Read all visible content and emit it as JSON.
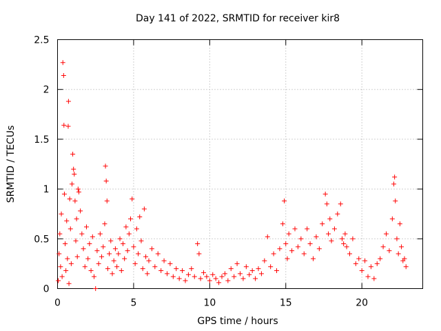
{
  "chart_data": {
    "type": "scatter",
    "title": "Day 141 of 2022, SRMTID for receiver kir8",
    "xlabel": "GPS time / hours",
    "ylabel": "SRMTID / TECUs",
    "xlim": [
      0,
      24
    ],
    "ylim": [
      0,
      2.5
    ],
    "xticks": [
      0,
      5,
      10,
      15,
      20
    ],
    "xtick_labels": [
      "0",
      "5",
      "10",
      "15",
      "20"
    ],
    "yticks": [
      0,
      0.5,
      1,
      1.5,
      2,
      2.5
    ],
    "ytick_labels": [
      "0",
      "0.5",
      "1",
      "1.5",
      "2",
      "2.5"
    ],
    "grid": true,
    "marker": "+",
    "marker_color": "#ff0000",
    "series": [
      {
        "name": "SRMTID",
        "points": [
          [
            0.05,
            0.08
          ],
          [
            0.1,
            0.35
          ],
          [
            0.15,
            0.55
          ],
          [
            0.2,
            0.22
          ],
          [
            0.25,
            0.75
          ],
          [
            0.3,
            0.12
          ],
          [
            0.35,
            2.27
          ],
          [
            0.4,
            2.14
          ],
          [
            0.42,
            1.64
          ],
          [
            0.45,
            0.95
          ],
          [
            0.5,
            0.45
          ],
          [
            0.55,
            0.18
          ],
          [
            0.6,
            0.68
          ],
          [
            0.65,
            0.3
          ],
          [
            0.7,
            1.63
          ],
          [
            0.72,
            1.88
          ],
          [
            0.75,
            0.05
          ],
          [
            0.8,
            0.9
          ],
          [
            0.85,
            0.6
          ],
          [
            0.9,
            0.25
          ],
          [
            0.95,
            1.05
          ],
          [
            1.0,
            1.35
          ],
          [
            1.05,
            1.2
          ],
          [
            1.1,
            1.15
          ],
          [
            1.15,
            0.88
          ],
          [
            1.2,
            0.48
          ],
          [
            1.25,
            0.7
          ],
          [
            1.3,
            0.32
          ],
          [
            1.35,
            1.0
          ],
          [
            1.4,
            0.97
          ],
          [
            1.5,
            0.78
          ],
          [
            1.6,
            0.55
          ],
          [
            1.7,
            0.4
          ],
          [
            1.8,
            0.22
          ],
          [
            1.9,
            0.62
          ],
          [
            2.0,
            0.3
          ],
          [
            2.1,
            0.45
          ],
          [
            2.2,
            0.18
          ],
          [
            2.3,
            0.52
          ],
          [
            2.4,
            0.12
          ],
          [
            2.5,
            0.0
          ],
          [
            2.6,
            0.38
          ],
          [
            2.7,
            0.25
          ],
          [
            2.8,
            0.55
          ],
          [
            2.9,
            0.32
          ],
          [
            3.0,
            0.42
          ],
          [
            3.1,
            0.65
          ],
          [
            3.15,
            1.23
          ],
          [
            3.2,
            1.08
          ],
          [
            3.25,
            0.88
          ],
          [
            3.3,
            0.2
          ],
          [
            3.4,
            0.35
          ],
          [
            3.5,
            0.48
          ],
          [
            3.6,
            0.15
          ],
          [
            3.7,
            0.28
          ],
          [
            3.8,
            0.4
          ],
          [
            3.9,
            0.22
          ],
          [
            4.0,
            0.35
          ],
          [
            4.1,
            0.5
          ],
          [
            4.2,
            0.18
          ],
          [
            4.3,
            0.45
          ],
          [
            4.4,
            0.3
          ],
          [
            4.5,
            0.62
          ],
          [
            4.6,
            0.38
          ],
          [
            4.7,
            0.55
          ],
          [
            4.8,
            0.7
          ],
          [
            4.9,
            0.9
          ],
          [
            5.0,
            0.42
          ],
          [
            5.1,
            0.25
          ],
          [
            5.2,
            0.6
          ],
          [
            5.3,
            0.35
          ],
          [
            5.4,
            0.72
          ],
          [
            5.5,
            0.48
          ],
          [
            5.6,
            0.2
          ],
          [
            5.7,
            0.8
          ],
          [
            5.8,
            0.32
          ],
          [
            5.9,
            0.15
          ],
          [
            6.0,
            0.28
          ],
          [
            6.2,
            0.4
          ],
          [
            6.4,
            0.22
          ],
          [
            6.6,
            0.35
          ],
          [
            6.8,
            0.18
          ],
          [
            7.0,
            0.28
          ],
          [
            7.2,
            0.15
          ],
          [
            7.4,
            0.25
          ],
          [
            7.6,
            0.12
          ],
          [
            7.8,
            0.2
          ],
          [
            8.0,
            0.1
          ],
          [
            8.2,
            0.18
          ],
          [
            8.4,
            0.08
          ],
          [
            8.6,
            0.14
          ],
          [
            8.8,
            0.2
          ],
          [
            9.0,
            0.12
          ],
          [
            9.2,
            0.45
          ],
          [
            9.3,
            0.35
          ],
          [
            9.4,
            0.1
          ],
          [
            9.6,
            0.16
          ],
          [
            9.8,
            0.12
          ],
          [
            10.0,
            0.08
          ],
          [
            10.2,
            0.14
          ],
          [
            10.4,
            0.1
          ],
          [
            10.6,
            0.06
          ],
          [
            10.8,
            0.12
          ],
          [
            11.0,
            0.15
          ],
          [
            11.2,
            0.08
          ],
          [
            11.4,
            0.2
          ],
          [
            11.6,
            0.12
          ],
          [
            11.8,
            0.25
          ],
          [
            12.0,
            0.15
          ],
          [
            12.2,
            0.1
          ],
          [
            12.4,
            0.22
          ],
          [
            12.6,
            0.14
          ],
          [
            12.8,
            0.18
          ],
          [
            13.0,
            0.1
          ],
          [
            13.2,
            0.2
          ],
          [
            13.4,
            0.15
          ],
          [
            13.6,
            0.28
          ],
          [
            13.8,
            0.52
          ],
          [
            14.0,
            0.22
          ],
          [
            14.2,
            0.35
          ],
          [
            14.4,
            0.18
          ],
          [
            14.6,
            0.4
          ],
          [
            14.8,
            0.65
          ],
          [
            14.9,
            0.88
          ],
          [
            15.0,
            0.45
          ],
          [
            15.1,
            0.3
          ],
          [
            15.2,
            0.55
          ],
          [
            15.4,
            0.38
          ],
          [
            15.6,
            0.6
          ],
          [
            15.8,
            0.42
          ],
          [
            16.0,
            0.5
          ],
          [
            16.2,
            0.35
          ],
          [
            16.4,
            0.6
          ],
          [
            16.6,
            0.45
          ],
          [
            16.8,
            0.3
          ],
          [
            17.0,
            0.52
          ],
          [
            17.2,
            0.4
          ],
          [
            17.4,
            0.65
          ],
          [
            17.6,
            0.95
          ],
          [
            17.7,
            0.85
          ],
          [
            17.8,
            0.55
          ],
          [
            17.9,
            0.7
          ],
          [
            18.0,
            0.48
          ],
          [
            18.2,
            0.6
          ],
          [
            18.4,
            0.75
          ],
          [
            18.6,
            0.85
          ],
          [
            18.7,
            0.5
          ],
          [
            18.8,
            0.45
          ],
          [
            18.9,
            0.55
          ],
          [
            19.0,
            0.42
          ],
          [
            19.2,
            0.35
          ],
          [
            19.4,
            0.5
          ],
          [
            19.6,
            0.25
          ],
          [
            19.8,
            0.3
          ],
          [
            20.0,
            0.18
          ],
          [
            20.2,
            0.28
          ],
          [
            20.4,
            0.12
          ],
          [
            20.6,
            0.22
          ],
          [
            20.8,
            0.1
          ],
          [
            21.0,
            0.25
          ],
          [
            21.2,
            0.3
          ],
          [
            21.4,
            0.42
          ],
          [
            21.6,
            0.55
          ],
          [
            21.8,
            0.38
          ],
          [
            22.0,
            0.7
          ],
          [
            22.1,
            1.05
          ],
          [
            22.15,
            1.12
          ],
          [
            22.2,
            0.88
          ],
          [
            22.3,
            0.5
          ],
          [
            22.4,
            0.35
          ],
          [
            22.5,
            0.65
          ],
          [
            22.6,
            0.42
          ],
          [
            22.7,
            0.28
          ],
          [
            22.8,
            0.3
          ],
          [
            22.9,
            0.22
          ]
        ]
      }
    ]
  }
}
